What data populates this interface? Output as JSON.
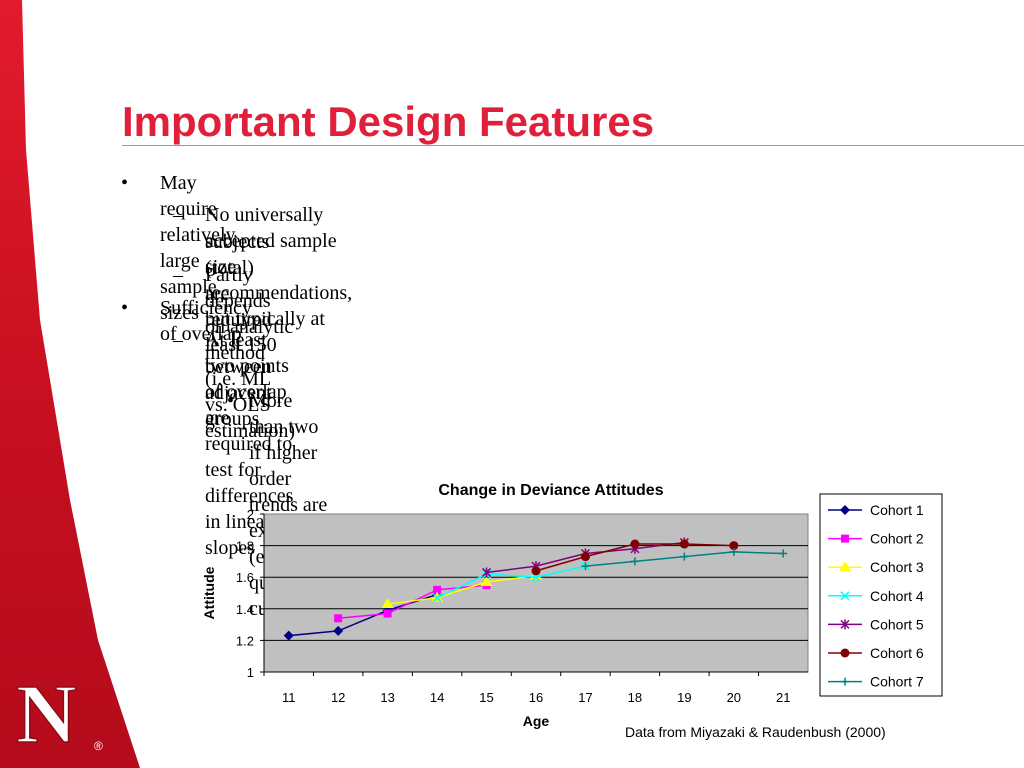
{
  "slide": {
    "title": "Important Design Features",
    "bullets": [
      {
        "level": 1,
        "marker": "•",
        "text": "May require relatively large sample sizes"
      },
      {
        "level": 2,
        "marker": "–",
        "text": "No universally accepted sample size recommendations, but typically at least 150",
        "cont": "subjects (total) are required"
      },
      {
        "level": 2,
        "marker": "–",
        "text": "Partly depends on analytic method (i.e. ML vs. OLS estimation)"
      },
      {
        "level": 1,
        "marker": "•",
        "text": "Sufficiency of overlap"
      },
      {
        "level": 2,
        "marker": "–",
        "text": "At least two points of overlap are required to test for differences in linear slopes",
        "cont": "between adjacent groups"
      },
      {
        "level": 3,
        "marker": "•",
        "text": "More than two if higher order trends are expected (e.g., quadratic, cubic)"
      }
    ],
    "source_note": "Data from Miyazaki & Raudenbush (2000)"
  },
  "colors": {
    "title": "#e0203a",
    "band": "#d4172a",
    "plot_bg": "#c0c0c0"
  },
  "logo": {
    "text": "N",
    "mark": "®"
  },
  "chart_data": {
    "type": "line",
    "title": "Change in Deviance Attitudes",
    "xlabel": "Age",
    "ylabel": "Attitude",
    "x": [
      11,
      12,
      13,
      14,
      15,
      16,
      17,
      18,
      19,
      20,
      21
    ],
    "ylim": [
      1,
      2
    ],
    "yticks": [
      "1",
      "1.2",
      "1.4",
      "1.6",
      "1.8",
      "2"
    ],
    "grid": true,
    "legend_position": "right",
    "series": [
      {
        "name": "Cohort 1",
        "color": "#000080",
        "marker": "diamond",
        "points": [
          [
            11,
            1.23
          ],
          [
            12,
            1.26
          ],
          [
            13,
            1.39
          ],
          [
            14,
            1.49
          ]
        ]
      },
      {
        "name": "Cohort 2",
        "color": "#ff00ff",
        "marker": "square",
        "points": [
          [
            12,
            1.34
          ],
          [
            13,
            1.37
          ],
          [
            14,
            1.52
          ],
          [
            15,
            1.55
          ]
        ]
      },
      {
        "name": "Cohort 3",
        "color": "#ffff00",
        "marker": "triangle",
        "points": [
          [
            13,
            1.43
          ],
          [
            14,
            1.47
          ],
          [
            15,
            1.57
          ],
          [
            16,
            1.61
          ]
        ]
      },
      {
        "name": "Cohort 4",
        "color": "#00ffff",
        "marker": "x",
        "points": [
          [
            14,
            1.47
          ],
          [
            15,
            1.62
          ],
          [
            16,
            1.6
          ],
          [
            17,
            1.67
          ]
        ]
      },
      {
        "name": "Cohort 5",
        "color": "#800080",
        "marker": "star",
        "points": [
          [
            15,
            1.63
          ],
          [
            16,
            1.67
          ],
          [
            17,
            1.75
          ],
          [
            18,
            1.78
          ],
          [
            19,
            1.82
          ]
        ]
      },
      {
        "name": "Cohort 6",
        "color": "#800000",
        "marker": "circle",
        "points": [
          [
            16,
            1.64
          ],
          [
            17,
            1.73
          ],
          [
            18,
            1.81
          ],
          [
            19,
            1.81
          ],
          [
            20,
            1.8
          ]
        ]
      },
      {
        "name": "Cohort 7",
        "color": "#008080",
        "marker": "plus",
        "points": [
          [
            17,
            1.67
          ],
          [
            18,
            1.7
          ],
          [
            19,
            1.73
          ],
          [
            20,
            1.76
          ],
          [
            21,
            1.75
          ]
        ]
      }
    ]
  }
}
